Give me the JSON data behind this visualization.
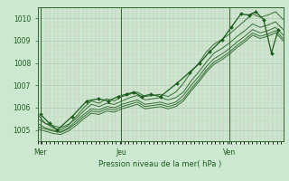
{
  "xlabel": "Pression niveau de la mer( hPa )",
  "bg_color": "#cce8d0",
  "plot_bg_color": "#cce8d0",
  "grid_major_color": "#aaccb0",
  "grid_minor_color": "#bbddc0",
  "grid_x_color": "#e0b0b8",
  "line_color": "#1a5c1a",
  "spine_color": "#336633",
  "ylim": [
    1004.5,
    1010.5
  ],
  "yticks": [
    1005,
    1006,
    1007,
    1008,
    1009,
    1010
  ],
  "xlim": [
    0,
    2.5
  ],
  "day_positions": [
    0.03,
    0.85,
    1.95
  ],
  "day_labels": [
    "Mer",
    "Jeu",
    "Ven"
  ],
  "series": [
    [
      1005.7,
      1005.3,
      1005.1,
      1005.0,
      1005.2,
      1005.6,
      1006.0,
      1006.3,
      1006.2,
      1006.4,
      1006.3,
      1006.5,
      1006.6,
      1006.7,
      1006.5,
      1006.55,
      1006.6,
      1006.5,
      1006.7,
      1007.1,
      1007.6,
      1008.0,
      1008.5,
      1008.85,
      1009.05,
      1009.3,
      1009.6,
      1009.9,
      1010.2,
      1010.05,
      1010.15,
      1010.3,
      1009.95
    ],
    [
      1005.3,
      1005.1,
      1005.0,
      1004.9,
      1005.1,
      1005.4,
      1005.7,
      1005.95,
      1005.9,
      1006.05,
      1006.0,
      1006.15,
      1006.25,
      1006.35,
      1006.15,
      1006.2,
      1006.25,
      1006.15,
      1006.25,
      1006.55,
      1007.0,
      1007.4,
      1007.85,
      1008.2,
      1008.4,
      1008.65,
      1008.95,
      1009.2,
      1009.5,
      1009.35,
      1009.45,
      1009.6,
      1009.25
    ],
    [
      1005.05,
      1004.95,
      1004.85,
      1004.8,
      1004.95,
      1005.2,
      1005.5,
      1005.75,
      1005.7,
      1005.85,
      1005.8,
      1005.95,
      1006.05,
      1006.15,
      1005.95,
      1006.0,
      1006.05,
      1005.95,
      1006.05,
      1006.3,
      1006.75,
      1007.15,
      1007.6,
      1007.95,
      1008.15,
      1008.4,
      1008.7,
      1008.95,
      1009.25,
      1009.1,
      1009.2,
      1009.35,
      1009.0
    ],
    [
      1005.15,
      1005.05,
      1004.95,
      1004.9,
      1005.05,
      1005.3,
      1005.6,
      1005.85,
      1005.8,
      1005.95,
      1005.9,
      1006.05,
      1006.15,
      1006.25,
      1006.05,
      1006.1,
      1006.15,
      1006.05,
      1006.15,
      1006.4,
      1006.85,
      1007.25,
      1007.7,
      1008.05,
      1008.25,
      1008.5,
      1008.8,
      1009.05,
      1009.35,
      1009.2,
      1009.3,
      1009.45,
      1009.1
    ],
    [
      1005.5,
      1005.3,
      1005.2,
      1005.1,
      1005.25,
      1005.5,
      1005.85,
      1006.15,
      1006.05,
      1006.2,
      1006.15,
      1006.3,
      1006.45,
      1006.55,
      1006.35,
      1006.4,
      1006.45,
      1006.35,
      1006.45,
      1006.7,
      1007.2,
      1007.6,
      1008.05,
      1008.45,
      1008.65,
      1008.9,
      1009.2,
      1009.45,
      1009.75,
      1009.6,
      1009.7,
      1009.85,
      1009.5
    ]
  ],
  "marker_series_y": [
    1005.7,
    1005.3,
    1005.0,
    1005.6,
    1006.3,
    1006.4,
    1006.3,
    1006.5,
    1006.6,
    1006.7,
    1006.5,
    1006.6,
    1006.5,
    1007.1,
    1007.6,
    1008.0,
    1008.5,
    1009.05,
    1009.6,
    1010.2,
    1010.15,
    1010.3,
    1009.95,
    1008.45,
    1009.5
  ],
  "marker_series_x": [
    0.03,
    0.12,
    0.2,
    0.35,
    0.5,
    0.62,
    0.72,
    0.82,
    0.9,
    0.98,
    1.06,
    1.15,
    1.25,
    1.42,
    1.55,
    1.65,
    1.75,
    1.88,
    1.97,
    2.07,
    2.15,
    2.22,
    2.3,
    2.38,
    2.45
  ]
}
